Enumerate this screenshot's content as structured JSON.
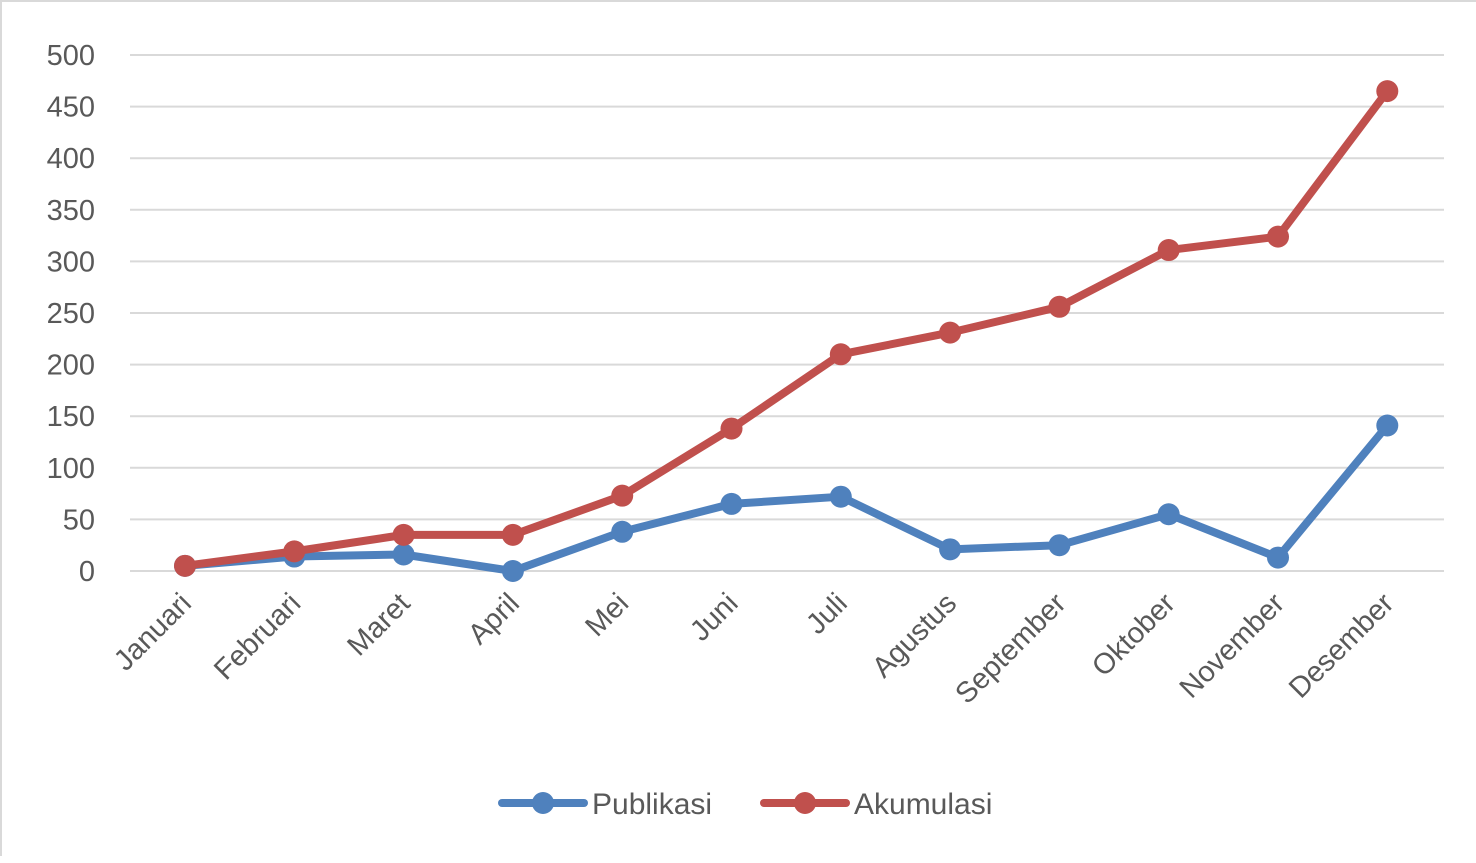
{
  "chart_data": {
    "type": "line",
    "title": "",
    "xlabel": "",
    "ylabel": "",
    "categories": [
      "Januari",
      "Februari",
      "Maret",
      "April",
      "Mei",
      "Juni",
      "Juli",
      "Agustus",
      "September",
      "Oktober",
      "November",
      "Desember"
    ],
    "series": [
      {
        "name": "Publikasi",
        "color": "#4f81bd",
        "values": [
          5,
          14,
          16,
          0,
          38,
          65,
          72,
          21,
          25,
          55,
          13,
          141
        ]
      },
      {
        "name": "Akumulasi",
        "color": "#c0504d",
        "values": [
          5,
          19,
          35,
          35,
          73,
          138,
          210,
          231,
          256,
          311,
          324,
          465
        ]
      }
    ],
    "ylim": [
      0,
      500
    ],
    "yticks": [
      0,
      50,
      100,
      150,
      200,
      250,
      300,
      350,
      400,
      450,
      500
    ],
    "grid": true,
    "gridColor": "#d9d9d9",
    "legend": "bottom"
  }
}
